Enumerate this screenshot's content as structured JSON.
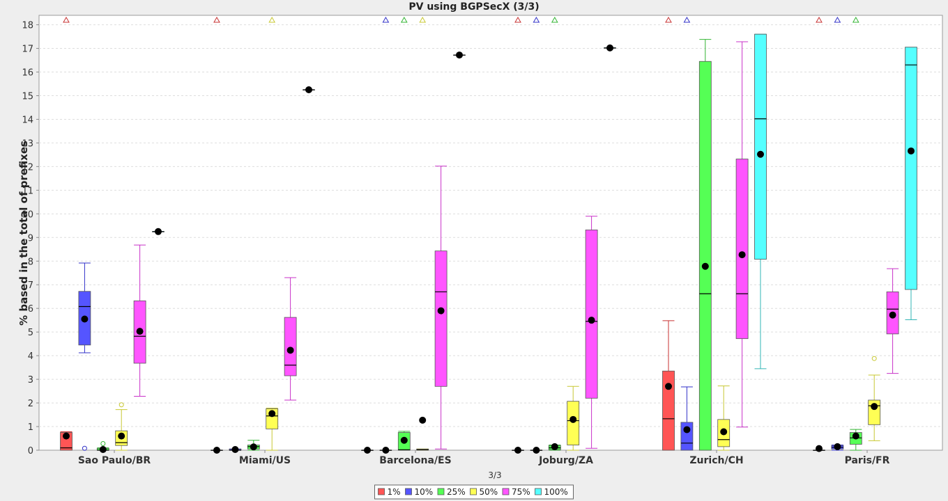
{
  "chart_data": {
    "type": "boxplot",
    "title": "PV using BGPSecX  (3/3)",
    "xlabel": "3/3",
    "ylabel": "% based in the total of prefixes",
    "ylim": [
      0,
      18.4
    ],
    "yticks": [
      0,
      1,
      2,
      3,
      4,
      5,
      6,
      7,
      8,
      9,
      10,
      11,
      12,
      13,
      14,
      15,
      16,
      17,
      18
    ],
    "grid": true,
    "legend_position": "bottom-center",
    "categories": [
      "Sao Paulo/BR",
      "Miami/US",
      "Barcelona/ES",
      "Joburg/ZA",
      "Zurich/CH",
      "Paris/FR"
    ],
    "series": [
      {
        "name": "1%",
        "color": "#ff5555",
        "stroke": "#c83232",
        "boxes": [
          {
            "min": 0,
            "q1": 0,
            "median": 0.1,
            "q3": 0.75,
            "max": 0.78,
            "mean": 0.6,
            "outliers": [],
            "far_out": true
          },
          {
            "min": 0,
            "q1": 0,
            "median": 0,
            "q3": 0,
            "max": 0,
            "mean": 0,
            "outliers": [],
            "far_out": true
          },
          {
            "min": 0,
            "q1": 0,
            "median": 0,
            "q3": 0,
            "max": 0,
            "mean": 0,
            "outliers": [],
            "far_out": false
          },
          {
            "min": 0,
            "q1": 0,
            "median": 0,
            "q3": 0,
            "max": 0,
            "mean": 0,
            "outliers": [],
            "far_out": true
          },
          {
            "min": 0,
            "q1": 0,
            "median": 1.33,
            "q3": 3.35,
            "max": 5.48,
            "mean": 2.7,
            "outliers": [],
            "far_out": true
          },
          {
            "min": 0,
            "q1": 0,
            "median": 0,
            "q3": 0,
            "max": 0,
            "mean": 0.07,
            "outliers": [],
            "far_out": true
          }
        ]
      },
      {
        "name": "10%",
        "color": "#5555ff",
        "stroke": "#3232c8",
        "boxes": [
          {
            "min": 4.12,
            "q1": 4.45,
            "median": 6.08,
            "q3": 6.72,
            "max": 7.92,
            "mean": 5.55,
            "outliers": [
              0.08
            ],
            "far_out": false
          },
          {
            "min": 0,
            "q1": 0,
            "median": 0,
            "q3": 0.05,
            "max": 0.05,
            "mean": 0.03,
            "outliers": [],
            "far_out": false
          },
          {
            "min": 0,
            "q1": 0,
            "median": 0,
            "q3": 0,
            "max": 0,
            "mean": 0,
            "outliers": [],
            "far_out": true
          },
          {
            "min": 0,
            "q1": 0,
            "median": 0,
            "q3": 0,
            "max": 0,
            "mean": 0,
            "outliers": [],
            "far_out": true
          },
          {
            "min": 0,
            "q1": 0,
            "median": 0.3,
            "q3": 1.18,
            "max": 2.68,
            "mean": 0.87,
            "outliers": [],
            "far_out": true
          },
          {
            "min": 0,
            "q1": 0.05,
            "median": 0.12,
            "q3": 0.2,
            "max": 0.22,
            "mean": 0.15,
            "outliers": [],
            "far_out": true
          }
        ]
      },
      {
        "name": "25%",
        "color": "#55ff55",
        "stroke": "#32b432",
        "boxes": [
          {
            "min": 0,
            "q1": 0,
            "median": 0,
            "q3": 0.08,
            "max": 0.1,
            "mean": 0.03,
            "outliers": [
              0.28
            ],
            "far_out": false
          },
          {
            "min": 0,
            "q1": 0.05,
            "median": 0.15,
            "q3": 0.22,
            "max": 0.42,
            "mean": 0.14,
            "outliers": [],
            "far_out": false
          },
          {
            "min": 0,
            "q1": 0,
            "median": 0.02,
            "q3": 0.75,
            "max": 0.8,
            "mean": 0.42,
            "outliers": [],
            "far_out": true
          },
          {
            "min": 0,
            "q1": 0.02,
            "median": 0.1,
            "q3": 0.2,
            "max": 0.22,
            "mean": 0.15,
            "outliers": [],
            "far_out": true
          },
          {
            "min": 0,
            "q1": 0,
            "median": 6.62,
            "q3": 16.45,
            "max": 17.38,
            "mean": 7.78,
            "outliers": [],
            "far_out": false
          },
          {
            "min": 0,
            "q1": 0.25,
            "median": 0.52,
            "q3": 0.75,
            "max": 0.88,
            "mean": 0.6,
            "outliers": [],
            "far_out": true
          }
        ]
      },
      {
        "name": "50%",
        "color": "#ffff55",
        "stroke": "#c8c832",
        "boxes": [
          {
            "min": 0,
            "q1": 0.2,
            "median": 0.32,
            "q3": 0.82,
            "max": 1.72,
            "mean": 0.6,
            "outliers": [
              1.92
            ],
            "far_out": false
          },
          {
            "min": 0,
            "q1": 0.9,
            "median": 1.45,
            "q3": 1.75,
            "max": 1.78,
            "mean": 1.55,
            "outliers": [],
            "far_out": true
          },
          {
            "min": 0,
            "q1": 0,
            "median": 0.02,
            "q3": 0.05,
            "max": 0.05,
            "mean": 1.27,
            "outliers": [],
            "far_out": true
          },
          {
            "min": 0,
            "q1": 0.22,
            "median": 1.25,
            "q3": 2.07,
            "max": 2.7,
            "mean": 1.3,
            "outliers": [],
            "far_out": false
          },
          {
            "min": 0,
            "q1": 0.15,
            "median": 0.45,
            "q3": 1.3,
            "max": 2.72,
            "mean": 0.78,
            "outliers": [],
            "far_out": false
          },
          {
            "min": 0.4,
            "q1": 1.08,
            "median": 1.88,
            "q3": 2.12,
            "max": 3.18,
            "mean": 1.85,
            "outliers": [
              3.88
            ],
            "far_out": false
          }
        ]
      },
      {
        "name": "75%",
        "color": "#ff55ff",
        "stroke": "#c832c8",
        "boxes": [
          {
            "min": 2.28,
            "q1": 3.68,
            "median": 4.82,
            "q3": 6.32,
            "max": 8.68,
            "mean": 5.03,
            "outliers": [],
            "far_out": false
          },
          {
            "min": 2.12,
            "q1": 3.15,
            "median": 3.6,
            "q3": 5.62,
            "max": 7.3,
            "mean": 4.23,
            "outliers": [],
            "far_out": false
          },
          {
            "min": 0.05,
            "q1": 2.7,
            "median": 6.7,
            "q3": 8.43,
            "max": 12.02,
            "mean": 5.9,
            "outliers": [],
            "far_out": false
          },
          {
            "min": 0.08,
            "q1": 2.2,
            "median": 5.45,
            "q3": 9.32,
            "max": 9.9,
            "mean": 5.5,
            "outliers": [],
            "far_out": false
          },
          {
            "min": 0.98,
            "q1": 4.72,
            "median": 6.62,
            "q3": 12.32,
            "max": 17.28,
            "mean": 8.27,
            "outliers": [],
            "far_out": false
          },
          {
            "min": 3.25,
            "q1": 4.92,
            "median": 5.97,
            "q3": 6.7,
            "max": 7.68,
            "mean": 5.72,
            "outliers": [],
            "far_out": false
          }
        ]
      },
      {
        "name": "100%",
        "color": "#55ffff",
        "stroke": "#32b4b4",
        "boxes": [
          {
            "min": 9.25,
            "q1": 9.25,
            "median": 9.25,
            "q3": 9.25,
            "max": 9.25,
            "mean": 9.25,
            "outliers": [],
            "far_out": false
          },
          {
            "min": 15.25,
            "q1": 15.25,
            "median": 15.25,
            "q3": 15.25,
            "max": 15.25,
            "mean": 15.25,
            "outliers": [],
            "far_out": false
          },
          {
            "min": 16.72,
            "q1": 16.72,
            "median": 16.72,
            "q3": 16.72,
            "max": 16.72,
            "mean": 16.72,
            "outliers": [],
            "far_out": false
          },
          {
            "min": 17.02,
            "q1": 17.02,
            "median": 17.02,
            "q3": 17.02,
            "max": 17.02,
            "mean": 17.02,
            "outliers": [],
            "far_out": false
          },
          {
            "min": 3.45,
            "q1": 8.08,
            "median": 14.02,
            "q3": 17.6,
            "max": 17.6,
            "mean": 12.52,
            "outliers": [],
            "far_out": false
          },
          {
            "min": 5.52,
            "q1": 6.8,
            "median": 16.3,
            "q3": 17.05,
            "max": 17.05,
            "mean": 12.66,
            "outliers": [],
            "far_out": false
          }
        ]
      }
    ]
  }
}
